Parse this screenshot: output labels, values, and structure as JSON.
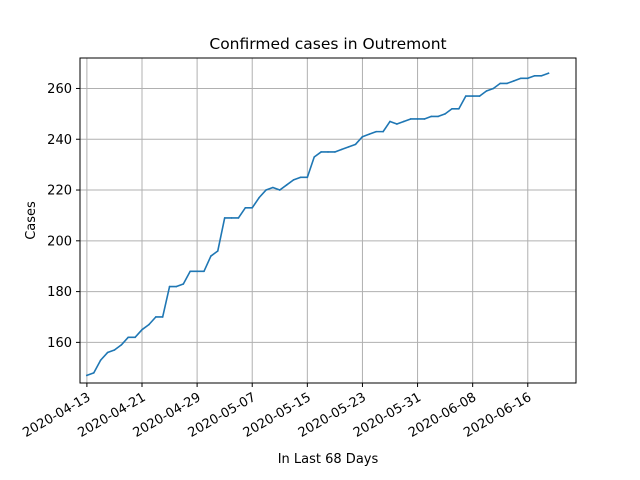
{
  "chart_data": {
    "type": "line",
    "title": "Confirmed cases in Outremont",
    "xlabel": "In Last 68 Days",
    "ylabel": "Cases",
    "grid": true,
    "xlim": [
      "2020-04-12",
      "2020-06-23"
    ],
    "ylim": [
      144,
      272
    ],
    "x_ticks": [
      "2020-04-13",
      "2020-04-21",
      "2020-04-29",
      "2020-05-07",
      "2020-05-15",
      "2020-05-23",
      "2020-05-31",
      "2020-06-08",
      "2020-06-16"
    ],
    "y_ticks": [
      160,
      180,
      200,
      220,
      240,
      260
    ],
    "line_color": "#1f77b4",
    "series": [
      {
        "x": [
          "2020-04-13",
          "2020-04-14",
          "2020-04-15",
          "2020-04-16",
          "2020-04-17",
          "2020-04-18",
          "2020-04-19",
          "2020-04-20",
          "2020-04-21",
          "2020-04-22",
          "2020-04-23",
          "2020-04-24",
          "2020-04-25",
          "2020-04-26",
          "2020-04-27",
          "2020-04-28",
          "2020-04-29",
          "2020-04-30",
          "2020-05-01",
          "2020-05-02",
          "2020-05-03",
          "2020-05-04",
          "2020-05-05",
          "2020-05-06",
          "2020-05-07",
          "2020-05-08",
          "2020-05-09",
          "2020-05-10",
          "2020-05-11",
          "2020-05-12",
          "2020-05-13",
          "2020-05-14",
          "2020-05-15",
          "2020-05-16",
          "2020-05-17",
          "2020-05-18",
          "2020-05-19",
          "2020-05-20",
          "2020-05-21",
          "2020-05-22",
          "2020-05-23",
          "2020-05-24",
          "2020-05-25",
          "2020-05-26",
          "2020-05-27",
          "2020-05-28",
          "2020-05-29",
          "2020-05-30",
          "2020-05-31",
          "2020-06-01",
          "2020-06-02",
          "2020-06-03",
          "2020-06-04",
          "2020-06-05",
          "2020-06-06",
          "2020-06-07",
          "2020-06-08",
          "2020-06-09",
          "2020-06-10",
          "2020-06-11",
          "2020-06-12",
          "2020-06-13",
          "2020-06-14",
          "2020-06-15",
          "2020-06-16",
          "2020-06-17",
          "2020-06-18",
          "2020-06-19"
        ],
        "values": [
          147,
          148,
          153,
          156,
          157,
          159,
          162,
          162,
          165,
          167,
          170,
          170,
          182,
          182,
          183,
          188,
          188,
          188,
          194,
          196,
          209,
          209,
          209,
          213,
          213,
          217,
          220,
          221,
          220,
          222,
          224,
          225,
          225,
          233,
          235,
          235,
          235,
          236,
          237,
          238,
          241,
          242,
          243,
          243,
          247,
          246,
          247,
          248,
          248,
          248,
          249,
          249,
          250,
          252,
          252,
          257,
          257,
          257,
          259,
          260,
          262,
          262,
          263,
          264,
          264,
          265,
          265,
          266
        ]
      }
    ]
  }
}
